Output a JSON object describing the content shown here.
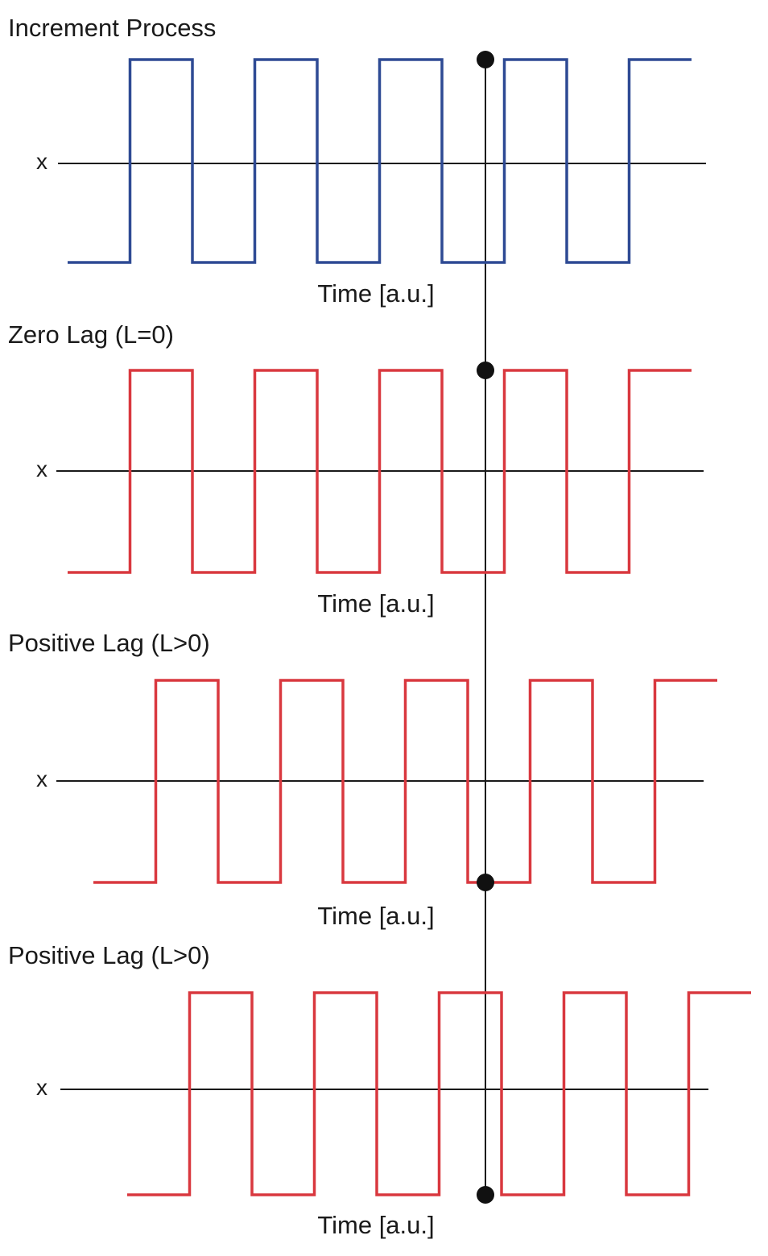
{
  "chart_data": [
    {
      "type": "line",
      "title": "Increment Process",
      "ylabel": "x",
      "xlabel": "Time [a.u.]",
      "color": "#2e4a94",
      "x": [
        0,
        1,
        1,
        2,
        2,
        3,
        3,
        4,
        4,
        5,
        5,
        6,
        6,
        7,
        7,
        8,
        8,
        9,
        9,
        10
      ],
      "values": [
        -1,
        -1,
        1,
        1,
        -1,
        -1,
        1,
        1,
        -1,
        -1,
        1,
        1,
        -1,
        -1,
        1,
        1,
        -1,
        -1,
        1,
        1
      ],
      "marker": {
        "x": 6.7,
        "y": 1
      }
    },
    {
      "type": "line",
      "title": "Zero Lag (L=0)",
      "ylabel": "x",
      "xlabel": "Time [a.u.]",
      "color": "#d9383f",
      "x": [
        0,
        1,
        1,
        2,
        2,
        3,
        3,
        4,
        4,
        5,
        5,
        6,
        6,
        7,
        7,
        8,
        8,
        9,
        9,
        10
      ],
      "values": [
        -1,
        -1,
        1,
        1,
        -1,
        -1,
        1,
        1,
        -1,
        -1,
        1,
        1,
        -1,
        -1,
        1,
        1,
        -1,
        -1,
        1,
        1
      ],
      "marker": {
        "x": 6.7,
        "y": 1
      }
    },
    {
      "type": "line",
      "title": "Positive Lag (L>0)",
      "ylabel": "x",
      "xlabel": "Time [a.u.]",
      "color": "#d9383f",
      "x": [
        0,
        1,
        1,
        2,
        2,
        3,
        3,
        4,
        4,
        5,
        5,
        6,
        6,
        7,
        7,
        8,
        8,
        9,
        9,
        10
      ],
      "values": [
        -1,
        -1,
        1,
        1,
        -1,
        -1,
        1,
        1,
        -1,
        -1,
        1,
        1,
        -1,
        -1,
        1,
        1,
        -1,
        -1,
        1,
        1
      ],
      "marker": {
        "x": 6.7,
        "y": -1
      }
    },
    {
      "type": "line",
      "title": "Positive Lag (L>0)",
      "ylabel": "x",
      "xlabel": "Time [a.u.]",
      "color": "#d9383f",
      "x": [
        0,
        1,
        1,
        2,
        2,
        3,
        3,
        4,
        4,
        5,
        5,
        6,
        6,
        7,
        7,
        8,
        8,
        9,
        9,
        10
      ],
      "values": [
        -1,
        -1,
        1,
        1,
        -1,
        -1,
        1,
        1,
        -1,
        -1,
        1,
        1,
        -1,
        -1,
        1,
        1,
        -1,
        -1,
        1,
        1
      ],
      "marker": {
        "x": 6.7,
        "y": -1
      }
    }
  ],
  "connector_color": "#1a1a1a",
  "axis_color": "#1a1a1a"
}
